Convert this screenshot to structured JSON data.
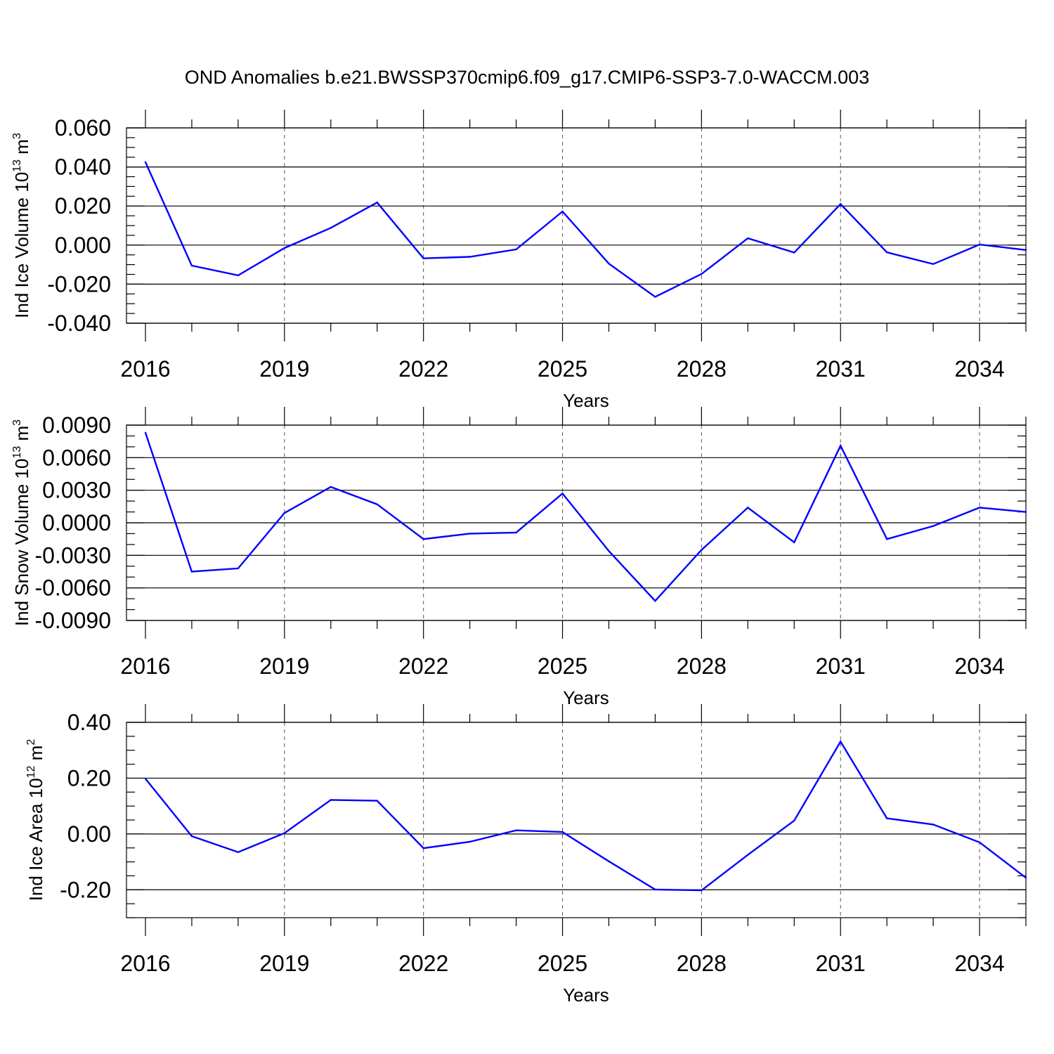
{
  "title": "OND Anomalies b.e21.BWSSP370cmip6.f09_g17.CMIP6-SSP3-7.0-WACCM.003",
  "chart_data": [
    {
      "type": "line",
      "ylabel_main": "Ind Ice Volume 10",
      "ylabel_sup": "13",
      "ylabel_unit": " m",
      "ylabel_unit_sup": "3",
      "xlabel": "Years",
      "xlim": [
        2016,
        2035
      ],
      "ylim": [
        -0.04,
        0.06
      ],
      "yticks": [
        -0.04,
        -0.02,
        0.0,
        0.02,
        0.04,
        0.06
      ],
      "ytick_labels": [
        "-0.040",
        "-0.020",
        "0.000",
        "0.020",
        "0.040",
        "0.060"
      ],
      "yminor_step": 0.005,
      "xticks": [
        2016,
        2019,
        2022,
        2025,
        2028,
        2031,
        2034
      ],
      "xtick_labels": [
        "2016",
        "2019",
        "2022",
        "2025",
        "2028",
        "2031",
        "2034"
      ],
      "grid_x": true,
      "color": "#0000ff",
      "x": [
        2016,
        2017,
        2018,
        2019,
        2020,
        2021,
        2022,
        2023,
        2024,
        2025,
        2026,
        2027,
        2028,
        2029,
        2030,
        2031,
        2032,
        2033,
        2034,
        2035
      ],
      "y": [
        0.0425,
        -0.0105,
        -0.0155,
        -0.0015,
        0.0088,
        0.0218,
        -0.0068,
        -0.006,
        -0.0022,
        0.0172,
        -0.0095,
        -0.0265,
        -0.0148,
        0.0035,
        -0.0038,
        0.021,
        -0.0037,
        -0.0097,
        0.0003,
        -0.0025
      ]
    },
    {
      "type": "line",
      "ylabel_main": "Ind Snow Volume 10",
      "ylabel_sup": "13",
      "ylabel_unit": " m",
      "ylabel_unit_sup": "3",
      "xlabel": "Years",
      "xlim": [
        2016,
        2035
      ],
      "ylim": [
        -0.009,
        0.009
      ],
      "yticks": [
        -0.009,
        -0.006,
        -0.003,
        0.0,
        0.003,
        0.006,
        0.009
      ],
      "ytick_labels": [
        "-0.0090",
        "-0.0060",
        "-0.0030",
        "0.0000",
        "0.0030",
        "0.0060",
        "0.0090"
      ],
      "yminor_step": 0.001,
      "xticks": [
        2016,
        2019,
        2022,
        2025,
        2028,
        2031,
        2034
      ],
      "xtick_labels": [
        "2016",
        "2019",
        "2022",
        "2025",
        "2028",
        "2031",
        "2034"
      ],
      "grid_x": true,
      "color": "#0000ff",
      "x": [
        2016,
        2017,
        2018,
        2019,
        2020,
        2021,
        2022,
        2023,
        2024,
        2025,
        2026,
        2027,
        2028,
        2029,
        2030,
        2031,
        2032,
        2033,
        2034,
        2035
      ],
      "y": [
        0.0083,
        -0.0045,
        -0.0042,
        0.0009,
        0.0033,
        0.0017,
        -0.0015,
        -0.001,
        -0.0009,
        0.0027,
        -0.0026,
        -0.0072,
        -0.0025,
        0.0014,
        -0.0018,
        0.0071,
        -0.0015,
        -0.0003,
        0.0014,
        0.001
      ]
    },
    {
      "type": "line",
      "ylabel_main": "Ind Ice Area 10",
      "ylabel_sup": "12",
      "ylabel_unit": " m",
      "ylabel_unit_sup": "2",
      "xlabel": "Years",
      "xlim": [
        2016,
        2035
      ],
      "ylim": [
        -0.3,
        0.4
      ],
      "yticks": [
        -0.2,
        0.0,
        0.2,
        0.4
      ],
      "ytick_labels": [
        "-0.20",
        "0.00",
        "0.20",
        "0.40"
      ],
      "yminor_step": 0.05,
      "xticks": [
        2016,
        2019,
        2022,
        2025,
        2028,
        2031,
        2034
      ],
      "xtick_labels": [
        "2016",
        "2019",
        "2022",
        "2025",
        "2028",
        "2031",
        "2034"
      ],
      "grid_x": true,
      "color": "#0000ff",
      "x": [
        2016,
        2017,
        2018,
        2019,
        2020,
        2021,
        2022,
        2023,
        2024,
        2025,
        2026,
        2027,
        2028,
        2029,
        2030,
        2031,
        2032,
        2033,
        2034,
        2035
      ],
      "y": [
        0.198,
        -0.008,
        -0.065,
        0.003,
        0.122,
        0.119,
        -0.051,
        -0.028,
        0.013,
        0.007,
        -0.098,
        -0.199,
        -0.202,
        -0.075,
        0.048,
        0.331,
        0.056,
        0.034,
        -0.03,
        -0.157
      ]
    }
  ]
}
